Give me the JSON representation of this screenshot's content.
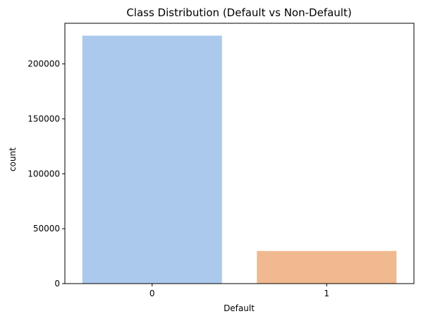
{
  "chart_data": {
    "type": "bar",
    "title": "Class Distribution (Default vs Non-Default)",
    "xlabel": "Default",
    "ylabel": "count",
    "categories": [
      "0",
      "1"
    ],
    "values": [
      225700,
      29700
    ],
    "ylim": [
      0,
      237000
    ],
    "yticks": [
      0,
      50000,
      100000,
      150000,
      200000
    ],
    "grid": false,
    "legend": "none",
    "colors": [
      "#abc9ed",
      "#f1b98f"
    ]
  }
}
